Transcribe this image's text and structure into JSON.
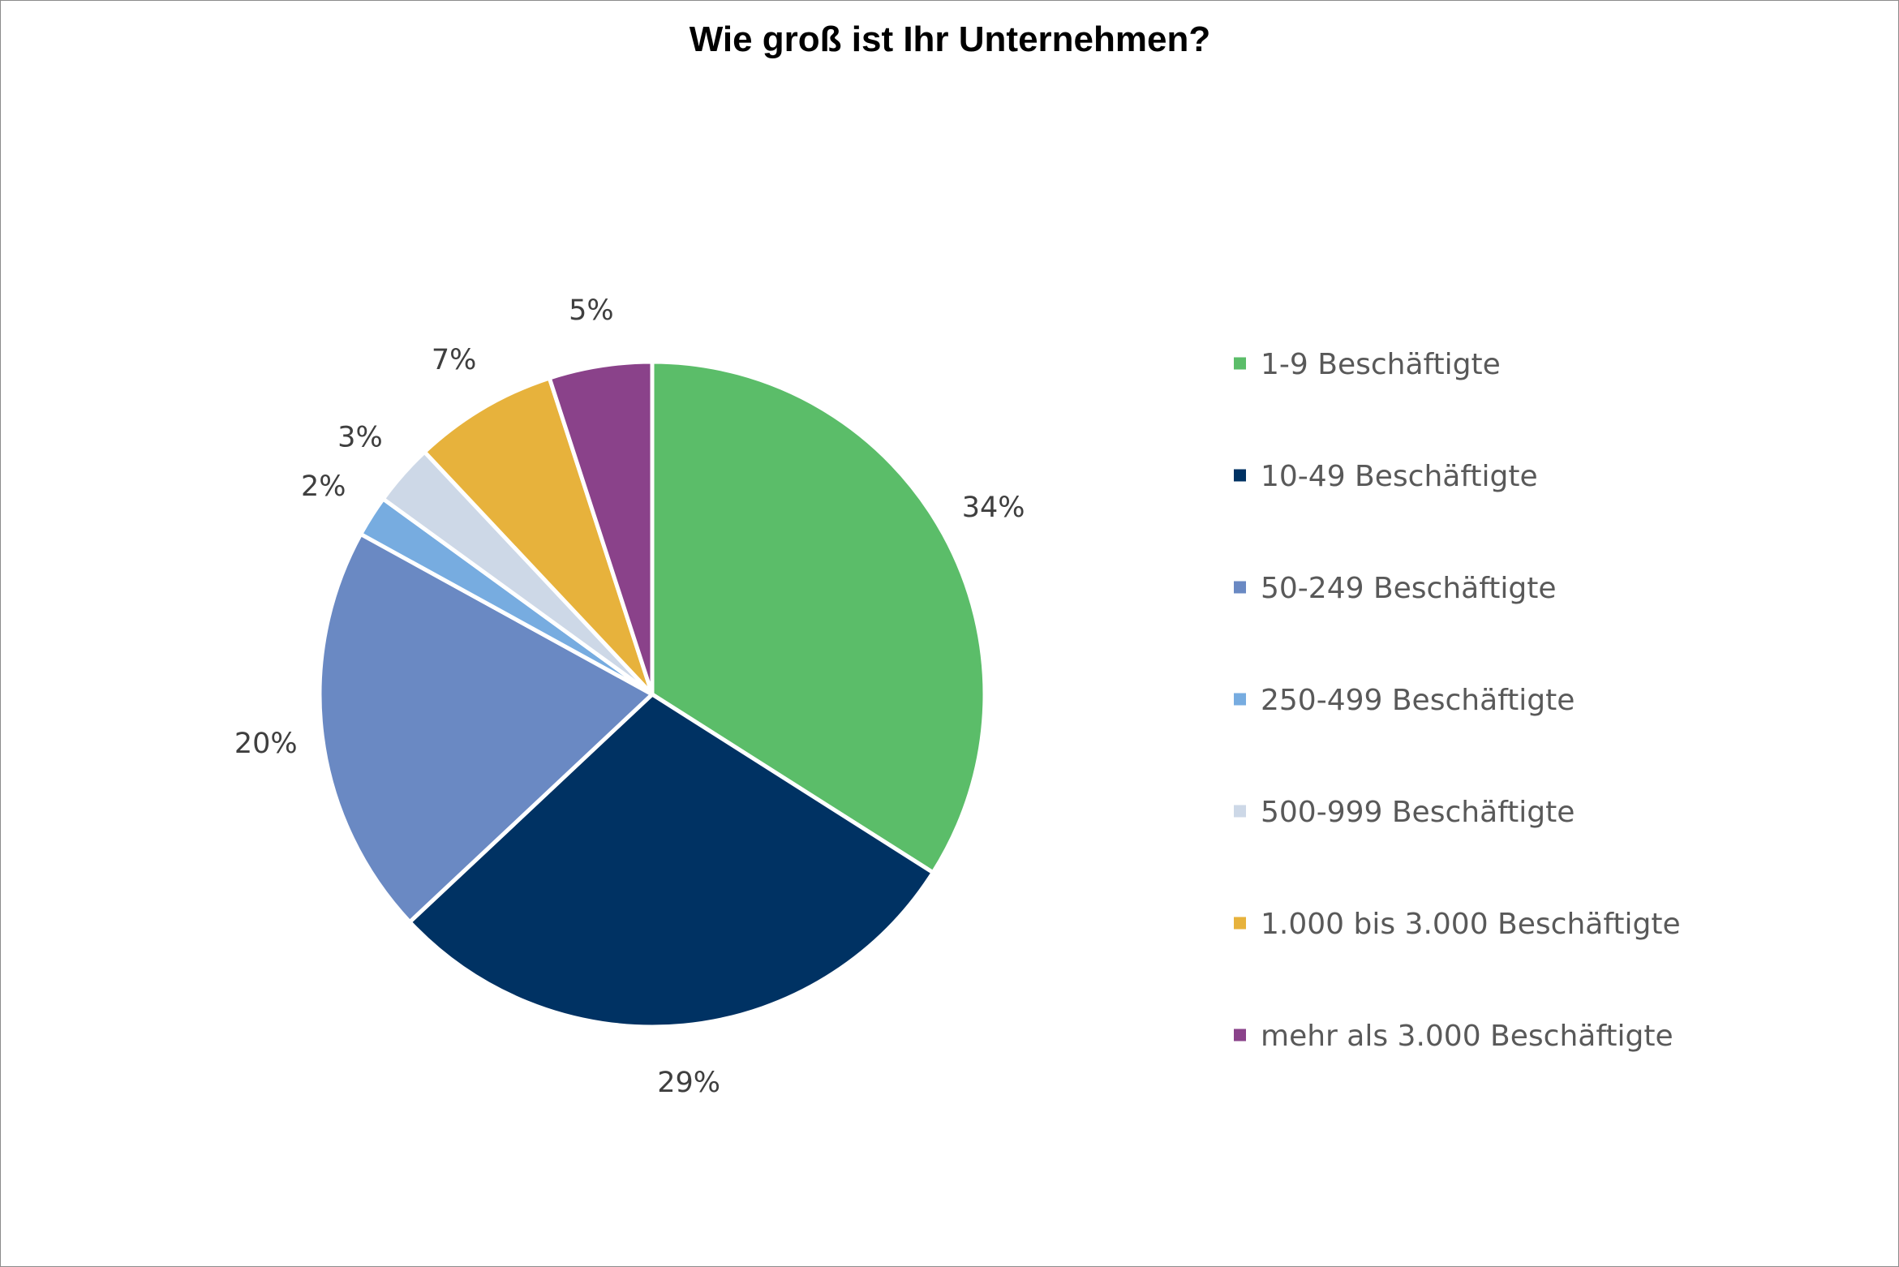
{
  "chart_data": {
    "type": "pie",
    "title": "Wie groß ist Ihr Unternehmen?",
    "legend_position": "right",
    "categories": [
      "1-9 Beschäftigte",
      "10-49 Beschäftigte",
      "50-249 Beschäftigte",
      "250-499 Beschäftigte",
      "500-999 Beschäftigte",
      "1.000 bis 3.000 Beschäftigte",
      "mehr als 3.000 Beschäftigte"
    ],
    "values": [
      34,
      29,
      20,
      2,
      3,
      7,
      5
    ],
    "value_labels": [
      "34%",
      "29%",
      "20%",
      "2%",
      "3%",
      "7%",
      "5%"
    ],
    "colors": [
      "#5bbd69",
      "#003263",
      "#6a89c3",
      "#77ace0",
      "#cdd8e7",
      "#e7b23c",
      "#8a428a"
    ]
  }
}
